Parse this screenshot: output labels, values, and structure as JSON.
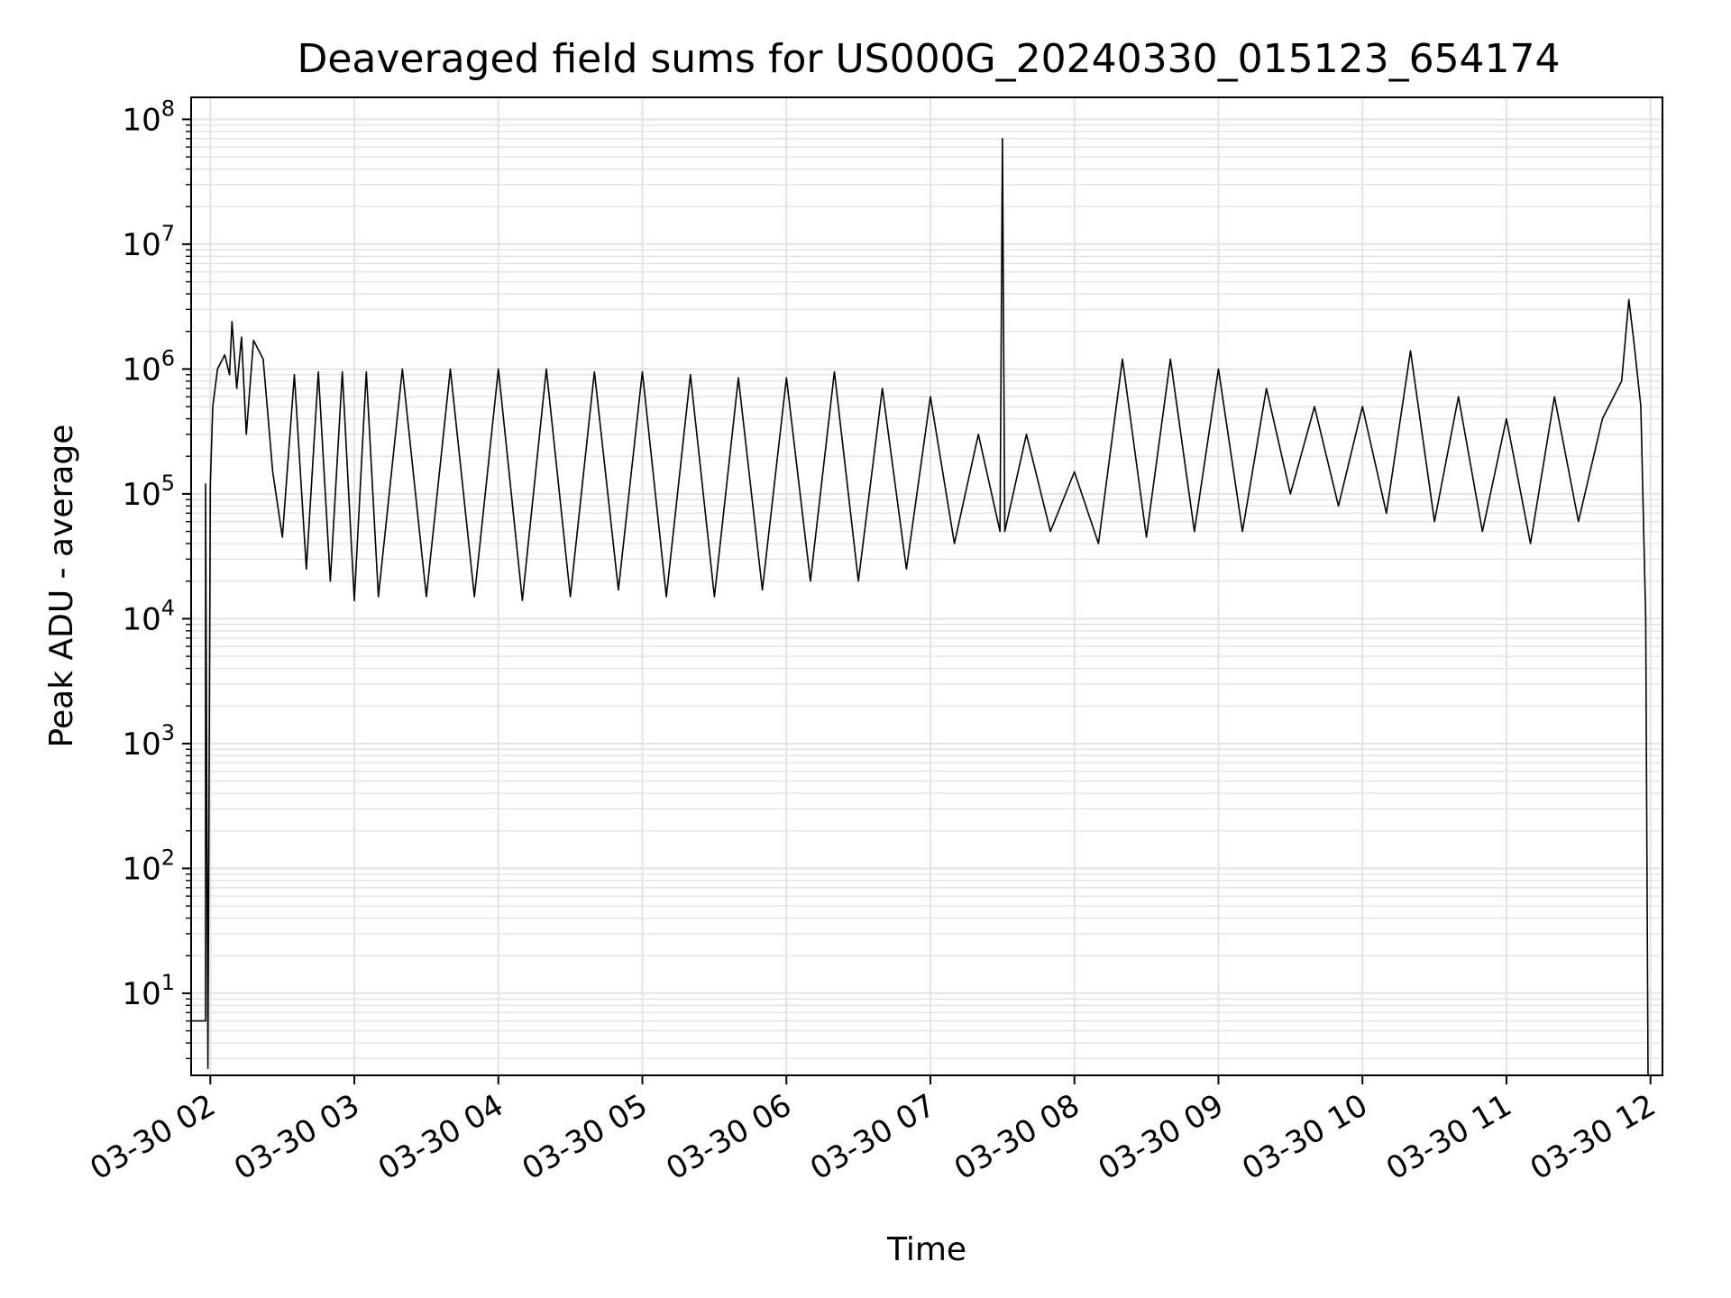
{
  "chart_data": {
    "type": "line",
    "title": "Deaveraged field sums for US000G_20240330_015123_654174",
    "xlabel": "Time",
    "ylabel": "Peak ADU - average",
    "yscale": "log",
    "ylim": [
      2.2,
      150000000
    ],
    "xlim": [
      "2024-03-30 01:52",
      "2024-03-30 12:05"
    ],
    "grid": true,
    "line_color": "#000000",
    "grid_color": "#e3e3e3",
    "x_ticks": [
      {
        "value": "2024-03-30 02:00",
        "label": "03-30 02"
      },
      {
        "value": "2024-03-30 03:00",
        "label": "03-30 03"
      },
      {
        "value": "2024-03-30 04:00",
        "label": "03-30 04"
      },
      {
        "value": "2024-03-30 05:00",
        "label": "03-30 05"
      },
      {
        "value": "2024-03-30 06:00",
        "label": "03-30 06"
      },
      {
        "value": "2024-03-30 07:00",
        "label": "03-30 07"
      },
      {
        "value": "2024-03-30 08:00",
        "label": "03-30 08"
      },
      {
        "value": "2024-03-30 09:00",
        "label": "03-30 09"
      },
      {
        "value": "2024-03-30 10:00",
        "label": "03-30 10"
      },
      {
        "value": "2024-03-30 11:00",
        "label": "03-30 11"
      },
      {
        "value": "2024-03-30 12:00",
        "label": "03-30 12"
      }
    ],
    "y_ticks": [
      {
        "value": 10,
        "base": "10",
        "exp": "1"
      },
      {
        "value": 100,
        "base": "10",
        "exp": "2"
      },
      {
        "value": 1000,
        "base": "10",
        "exp": "3"
      },
      {
        "value": 10000,
        "base": "10",
        "exp": "4"
      },
      {
        "value": 100000,
        "base": "10",
        "exp": "5"
      },
      {
        "value": 1000000,
        "base": "10",
        "exp": "6"
      },
      {
        "value": 10000000,
        "base": "10",
        "exp": "7"
      },
      {
        "value": 100000000,
        "base": "10",
        "exp": "8"
      }
    ],
    "series": [
      {
        "points": [
          [
            "2024-03-30 01:52",
            6
          ],
          [
            "2024-03-30 01:58",
            6
          ],
          [
            "2024-03-30 01:58",
            120000
          ],
          [
            "2024-03-30 01:59",
            2.5
          ],
          [
            "2024-03-30 02:00",
            120000
          ],
          [
            "2024-03-30 02:01",
            500000
          ],
          [
            "2024-03-30 02:03",
            1000000
          ],
          [
            "2024-03-30 02:06",
            1300000
          ],
          [
            "2024-03-30 02:08",
            900000
          ],
          [
            "2024-03-30 02:09",
            2400000
          ],
          [
            "2024-03-30 02:11",
            700000
          ],
          [
            "2024-03-30 02:13",
            1800000
          ],
          [
            "2024-03-30 02:15",
            300000
          ],
          [
            "2024-03-30 02:18",
            1700000
          ],
          [
            "2024-03-30 02:22",
            1200000
          ],
          [
            "2024-03-30 02:26",
            150000
          ],
          [
            "2024-03-30 02:30",
            45000
          ],
          [
            "2024-03-30 02:35",
            900000
          ],
          [
            "2024-03-30 02:40",
            25000
          ],
          [
            "2024-03-30 02:45",
            950000
          ],
          [
            "2024-03-30 02:50",
            20000
          ],
          [
            "2024-03-30 02:55",
            950000
          ],
          [
            "2024-03-30 03:00",
            14000
          ],
          [
            "2024-03-30 03:05",
            950000
          ],
          [
            "2024-03-30 03:10",
            15000
          ],
          [
            "2024-03-30 03:20",
            1000000
          ],
          [
            "2024-03-30 03:30",
            15000
          ],
          [
            "2024-03-30 03:40",
            1000000
          ],
          [
            "2024-03-30 03:50",
            15000
          ],
          [
            "2024-03-30 04:00",
            1000000
          ],
          [
            "2024-03-30 04:10",
            14000
          ],
          [
            "2024-03-30 04:20",
            1000000
          ],
          [
            "2024-03-30 04:30",
            15000
          ],
          [
            "2024-03-30 04:40",
            950000
          ],
          [
            "2024-03-30 04:50",
            17000
          ],
          [
            "2024-03-30 05:00",
            950000
          ],
          [
            "2024-03-30 05:10",
            15000
          ],
          [
            "2024-03-30 05:20",
            900000
          ],
          [
            "2024-03-30 05:30",
            15000
          ],
          [
            "2024-03-30 05:40",
            850000
          ],
          [
            "2024-03-30 05:50",
            17000
          ],
          [
            "2024-03-30 06:00",
            850000
          ],
          [
            "2024-03-30 06:10",
            20000
          ],
          [
            "2024-03-30 06:20",
            950000
          ],
          [
            "2024-03-30 06:30",
            20000
          ],
          [
            "2024-03-30 06:40",
            700000
          ],
          [
            "2024-03-30 06:50",
            25000
          ],
          [
            "2024-03-30 07:00",
            600000
          ],
          [
            "2024-03-30 07:10",
            40000
          ],
          [
            "2024-03-30 07:20",
            300000
          ],
          [
            "2024-03-30 07:29",
            50000
          ],
          [
            "2024-03-30 07:30",
            70000000
          ],
          [
            "2024-03-30 07:31",
            50000
          ],
          [
            "2024-03-30 07:40",
            300000
          ],
          [
            "2024-03-30 07:50",
            50000
          ],
          [
            "2024-03-30 08:00",
            150000
          ],
          [
            "2024-03-30 08:10",
            40000
          ],
          [
            "2024-03-30 08:20",
            1200000
          ],
          [
            "2024-03-30 08:30",
            45000
          ],
          [
            "2024-03-30 08:40",
            1200000
          ],
          [
            "2024-03-30 08:50",
            50000
          ],
          [
            "2024-03-30 09:00",
            1000000
          ],
          [
            "2024-03-30 09:10",
            50000
          ],
          [
            "2024-03-30 09:20",
            700000
          ],
          [
            "2024-03-30 09:30",
            100000
          ],
          [
            "2024-03-30 09:40",
            500000
          ],
          [
            "2024-03-30 09:50",
            80000
          ],
          [
            "2024-03-30 10:00",
            500000
          ],
          [
            "2024-03-30 10:10",
            70000
          ],
          [
            "2024-03-30 10:20",
            1400000
          ],
          [
            "2024-03-30 10:30",
            60000
          ],
          [
            "2024-03-30 10:40",
            600000
          ],
          [
            "2024-03-30 10:50",
            50000
          ],
          [
            "2024-03-30 11:00",
            400000
          ],
          [
            "2024-03-30 11:10",
            40000
          ],
          [
            "2024-03-30 11:20",
            600000
          ],
          [
            "2024-03-30 11:30",
            60000
          ],
          [
            "2024-03-30 11:40",
            400000
          ],
          [
            "2024-03-30 11:48",
            800000
          ],
          [
            "2024-03-30 11:51",
            3600000
          ],
          [
            "2024-03-30 11:53",
            1700000
          ],
          [
            "2024-03-30 11:56",
            500000
          ],
          [
            "2024-03-30 11:58",
            10000
          ],
          [
            "2024-03-30 11:59",
            2.2
          ]
        ]
      }
    ]
  }
}
